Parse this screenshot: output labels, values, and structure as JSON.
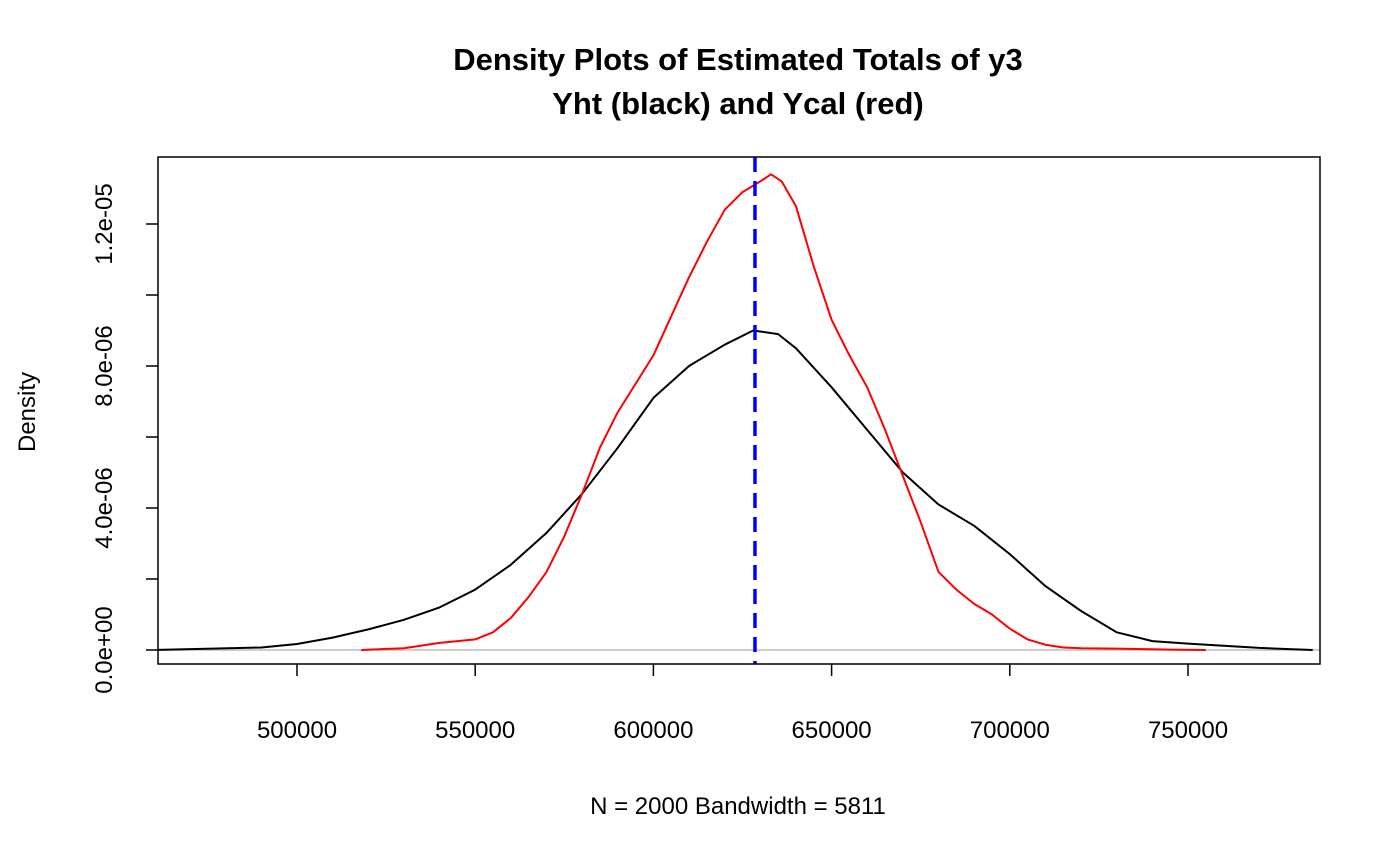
{
  "chart_data": {
    "type": "line",
    "title": "Density Plots of Estimated Totals of y3",
    "subtitle": "Yht (black) and Ycal (red)",
    "xlabel": "N = 2000   Bandwidth = 5811",
    "ylabel": "Density",
    "xlim": [
      460000,
      785000
    ],
    "ylim": [
      -8e-07,
      1.39e-05
    ],
    "x_ticks": [
      500000,
      550000,
      600000,
      650000,
      700000,
      750000
    ],
    "x_tick_labels": [
      "500000",
      "550000",
      "600000",
      "650000",
      "700000",
      "750000"
    ],
    "y_ticks": [
      0,
      2e-06,
      4e-06,
      6e-06,
      8e-06,
      1e-05,
      1.2e-05
    ],
    "y_tick_labels": [
      "0.0e+00",
      "",
      "4.0e-06",
      "",
      "8.0e-06",
      "",
      "1.2e-05"
    ],
    "grid": false,
    "zero_line": {
      "y": 0,
      "color": "#bebebe"
    },
    "reference_line": {
      "x": 628500,
      "color": "#0000ff",
      "style": "dashed"
    },
    "series": [
      {
        "color": "#000000",
        "x": [
          460000,
          490000,
          500000,
          510000,
          520000,
          530000,
          540000,
          550000,
          560000,
          570000,
          580000,
          590000,
          600000,
          610000,
          620000,
          628000,
          635000,
          640000,
          650000,
          660000,
          670000,
          680000,
          690000,
          700000,
          710000,
          720000,
          730000,
          740000,
          750000,
          760000,
          770000,
          785000
        ],
        "y": [
          0,
          7e-08,
          1.7e-07,
          3.5e-07,
          5.8e-07,
          8.5e-07,
          1.2e-06,
          1.7e-06,
          2.4e-06,
          3.3e-06,
          4.4e-06,
          5.7e-06,
          7.1e-06,
          8e-06,
          8.6e-06,
          9e-06,
          8.9e-06,
          8.5e-06,
          7.4e-06,
          6.2e-06,
          5e-06,
          4.1e-06,
          3.5e-06,
          2.7e-06,
          1.8e-06,
          1.1e-06,
          5e-07,
          2.5e-07,
          1.8e-07,
          1.2e-07,
          6e-08,
          0
        ]
      },
      {
        "color": "#ff0000",
        "x": [
          518000,
          530000,
          540000,
          550000,
          555000,
          560000,
          565000,
          570000,
          575000,
          580000,
          585000,
          590000,
          595000,
          600000,
          605000,
          610000,
          615000,
          620000,
          625000,
          630000,
          633000,
          636000,
          640000,
          645000,
          650000,
          655000,
          660000,
          665000,
          670000,
          675000,
          680000,
          685000,
          690000,
          695000,
          700000,
          705000,
          710000,
          715000,
          720000,
          730000,
          740000,
          745000,
          755000
        ],
        "y": [
          0,
          5e-08,
          2e-07,
          3e-07,
          5e-07,
          9e-07,
          1.5e-06,
          2.2e-06,
          3.2e-06,
          4.4e-06,
          5.7e-06,
          6.7e-06,
          7.5e-06,
          8.3e-06,
          9.4e-06,
          1.05e-05,
          1.15e-05,
          1.24e-05,
          1.29e-05,
          1.32e-05,
          1.34e-05,
          1.32e-05,
          1.25e-05,
          1.08e-05,
          9.3e-06,
          8.3e-06,
          7.4e-06,
          6.2e-06,
          4.9e-06,
          3.6e-06,
          2.2e-06,
          1.7e-06,
          1.3e-06,
          1e-06,
          6e-07,
          3e-07,
          1.5e-07,
          7e-08,
          5e-08,
          4e-08,
          2e-08,
          1e-08,
          0
        ]
      }
    ]
  }
}
